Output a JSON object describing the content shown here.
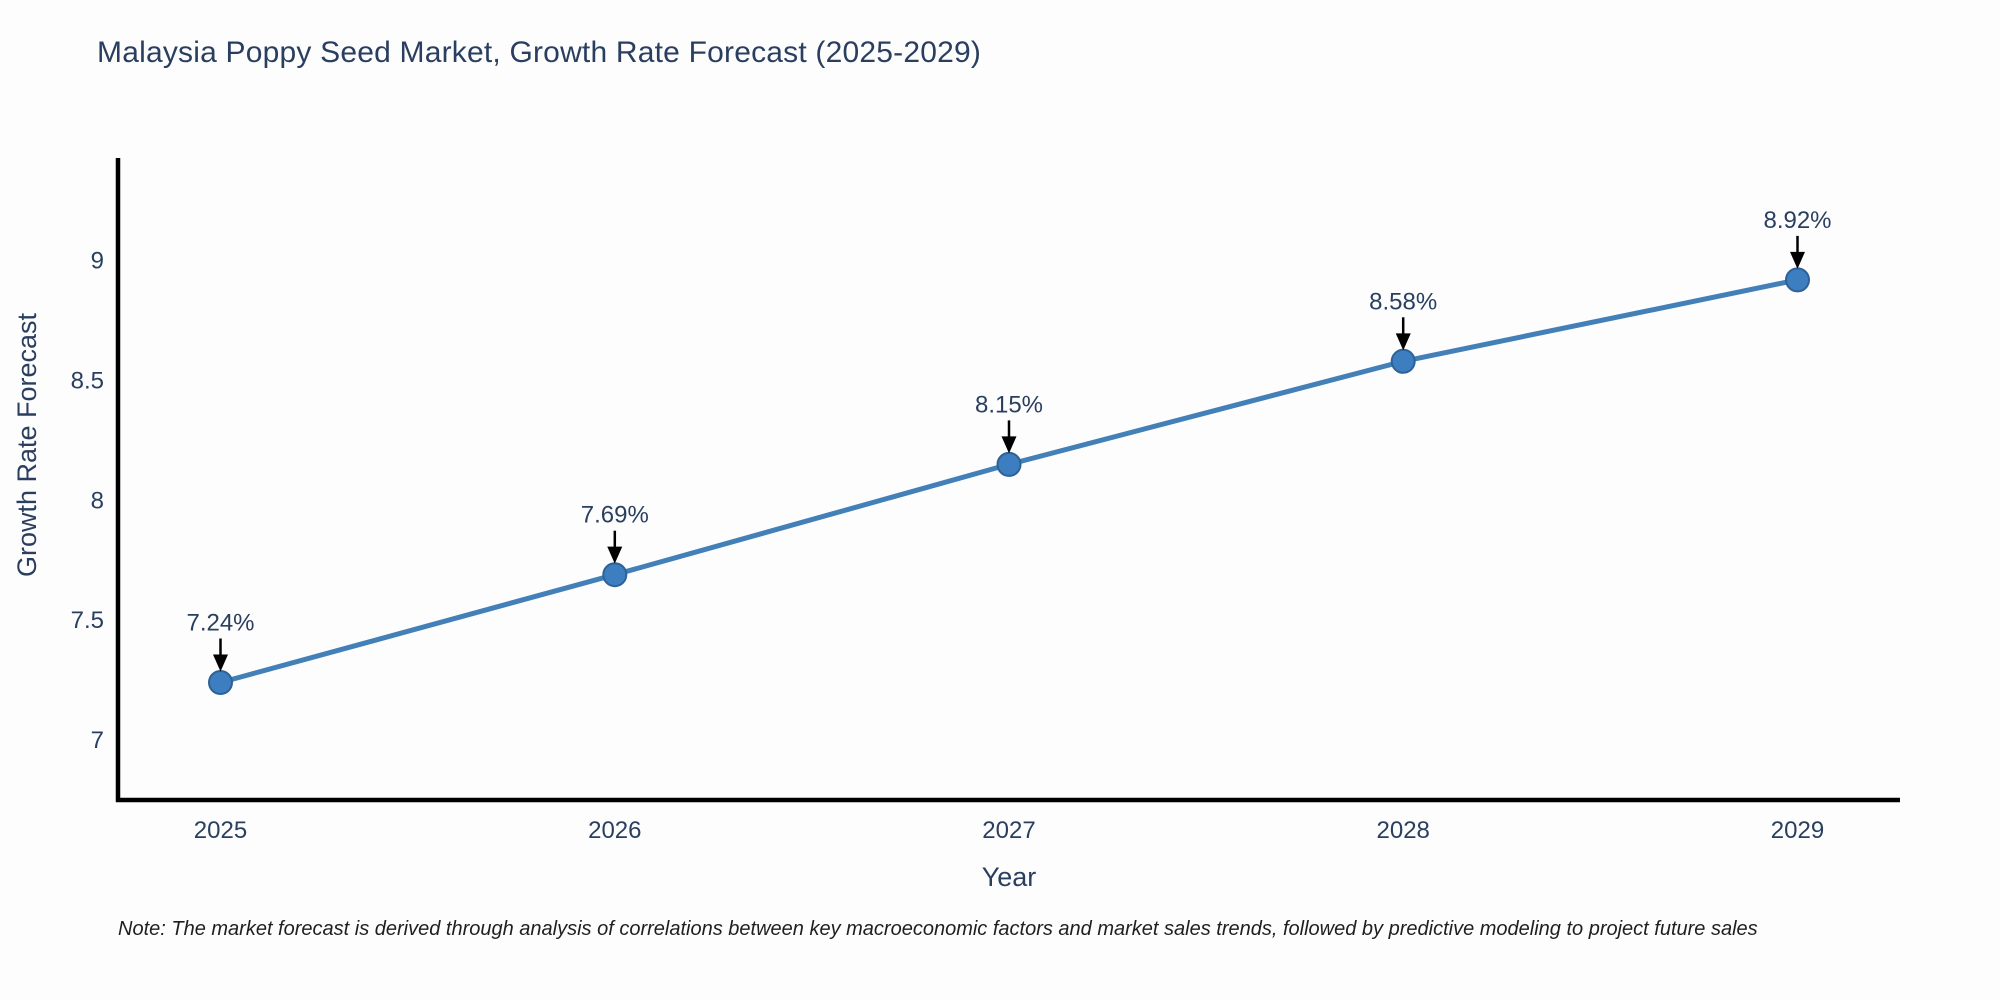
{
  "note": "Note: The market forecast is derived through analysis of correlations between key macroeconomic factors and market sales trends, followed by predictive modeling to project future sales",
  "chart_data": {
    "type": "line",
    "title": "Malaysia Poppy Seed Market, Growth Rate Forecast (2025-2029)",
    "xlabel": "Year",
    "ylabel": "Growth Rate Forecast",
    "x": [
      2025,
      2026,
      2027,
      2028,
      2029
    ],
    "values": [
      7.24,
      7.69,
      8.15,
      8.58,
      8.92
    ],
    "point_labels": [
      "7.24%",
      "7.69%",
      "8.15%",
      "8.58%",
      "8.92%"
    ],
    "xticks": [
      2025,
      2026,
      2027,
      2028,
      2029
    ],
    "yticks": [
      7,
      7.5,
      8,
      8.5,
      9
    ],
    "xlim": [
      2024.74,
      2029.26
    ],
    "ylim": [
      6.75,
      9.42
    ],
    "grid": false,
    "legend": "none",
    "colors": {
      "line": "#4380b8",
      "marker_fill": "#3c7ebf",
      "marker_border": "#2e6296",
      "axis_line": "#000000",
      "tick_text": "#2a3f5f",
      "annotation_text": "#2a3f5f",
      "annotation_arrow": "#000000"
    }
  }
}
